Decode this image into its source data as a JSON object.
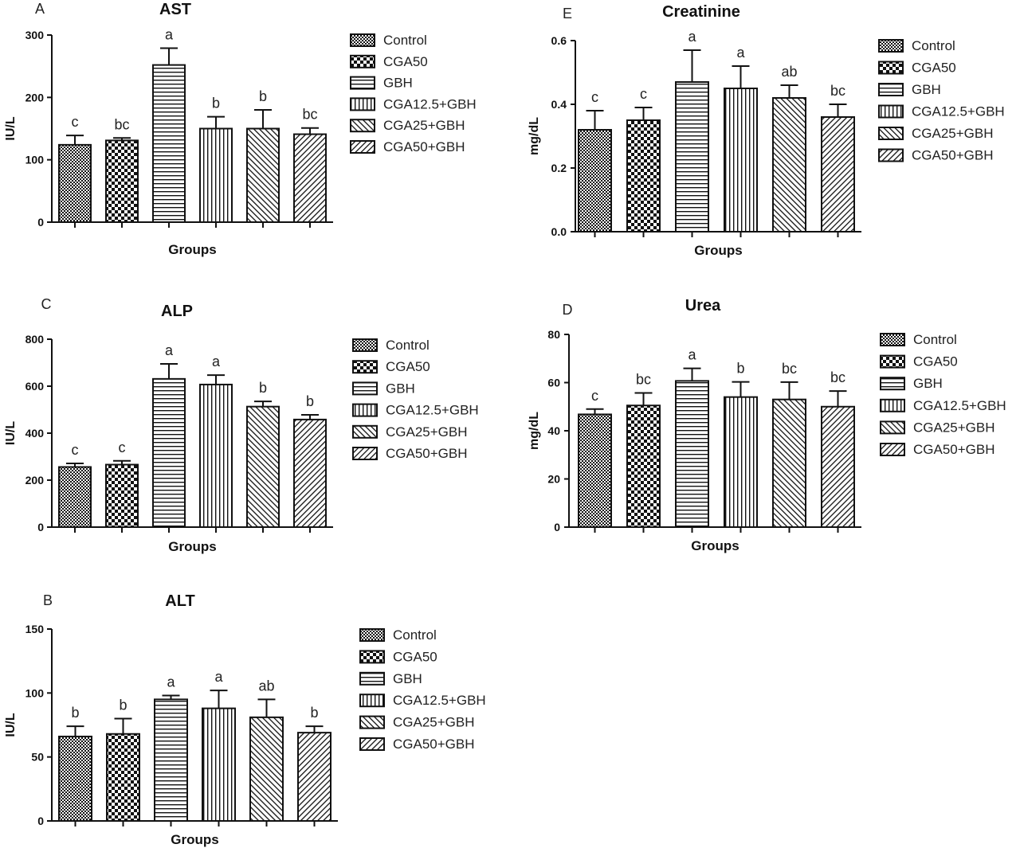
{
  "legend_items": [
    "Control",
    "CGA50",
    "GBH",
    "CGA12.5+GBH",
    "CGA25+GBH",
    "CGA50+GBH"
  ],
  "chart_data": [
    {
      "panel": "A",
      "type": "bar",
      "title": "AST",
      "xlabel": "Groups",
      "ylabel": "IU/L",
      "ylim": [
        0,
        300
      ],
      "yticks": [
        "0",
        "100",
        "200",
        "300"
      ],
      "categories": [
        "Control",
        "CGA50",
        "GBH",
        "CGA12.5+GBH",
        "CGA25+GBH",
        "CGA50+GBH"
      ],
      "values": [
        124,
        131,
        252,
        150,
        150,
        141
      ],
      "errors": [
        15,
        4,
        27,
        19,
        30,
        10
      ],
      "significance": [
        "c",
        "bc",
        "a",
        "b",
        "b",
        "bc"
      ],
      "legend_position": "right"
    },
    {
      "panel": "C",
      "type": "bar",
      "title": "ALP",
      "xlabel": "Groups",
      "ylabel": "IU/L",
      "ylim": [
        0,
        800
      ],
      "yticks": [
        "0",
        "200",
        "400",
        "600",
        "800"
      ],
      "categories": [
        "Control",
        "CGA50",
        "GBH",
        "CGA12.5+GBH",
        "CGA25+GBH",
        "CGA50+GBH"
      ],
      "values": [
        256,
        266,
        631,
        607,
        513,
        458
      ],
      "errors": [
        15,
        16,
        64,
        40,
        22,
        20
      ],
      "significance": [
        "c",
        "c",
        "a",
        "a",
        "b",
        "b"
      ],
      "legend_position": "right"
    },
    {
      "panel": "B",
      "type": "bar",
      "title": "ALT",
      "xlabel": "Groups",
      "ylabel": "IU/L",
      "ylim": [
        0,
        150
      ],
      "yticks": [
        "0",
        "50",
        "100",
        "150"
      ],
      "categories": [
        "Control",
        "CGA50",
        "GBH",
        "CGA12.5+GBH",
        "CGA25+GBH",
        "CGA50+GBH"
      ],
      "values": [
        66,
        68,
        95,
        88,
        81,
        69
      ],
      "errors": [
        8,
        12,
        3,
        14,
        14,
        5
      ],
      "significance": [
        "b",
        "b",
        "a",
        "a",
        "ab",
        "b"
      ],
      "legend_position": "right"
    },
    {
      "panel": "E",
      "type": "bar",
      "title": "Creatinine",
      "xlabel": "Groups",
      "ylabel": "mg/dL",
      "ylim": [
        0,
        0.6
      ],
      "yticks": [
        "0.0",
        "0.2",
        "0.4",
        "0.6"
      ],
      "categories": [
        "Control",
        "CGA50",
        "GBH",
        "CGA12.5+GBH",
        "CGA25+GBH",
        "CGA50+GBH"
      ],
      "values": [
        0.32,
        0.35,
        0.47,
        0.45,
        0.42,
        0.36
      ],
      "errors": [
        0.06,
        0.04,
        0.1,
        0.07,
        0.04,
        0.04
      ],
      "significance": [
        "c",
        "c",
        "a",
        "a",
        "ab",
        "bc"
      ],
      "legend_position": "right"
    },
    {
      "panel": "D",
      "type": "bar",
      "title": "Urea",
      "xlabel": "Groups",
      "ylabel": "mg/dL",
      "ylim": [
        0,
        80
      ],
      "yticks": [
        "0",
        "20",
        "40",
        "60",
        "80"
      ],
      "categories": [
        "Control",
        "CGA50",
        "GBH",
        "CGA12.5+GBH",
        "CGA25+GBH",
        "CGA50+GBH"
      ],
      "values": [
        46.8,
        50.5,
        60.7,
        54,
        53,
        50
      ],
      "errors": [
        2.2,
        5.2,
        5.2,
        6.3,
        7.2,
        6.5
      ],
      "significance": [
        "c",
        "bc",
        "a",
        "b",
        "bc",
        "bc"
      ],
      "legend_position": "right"
    }
  ]
}
